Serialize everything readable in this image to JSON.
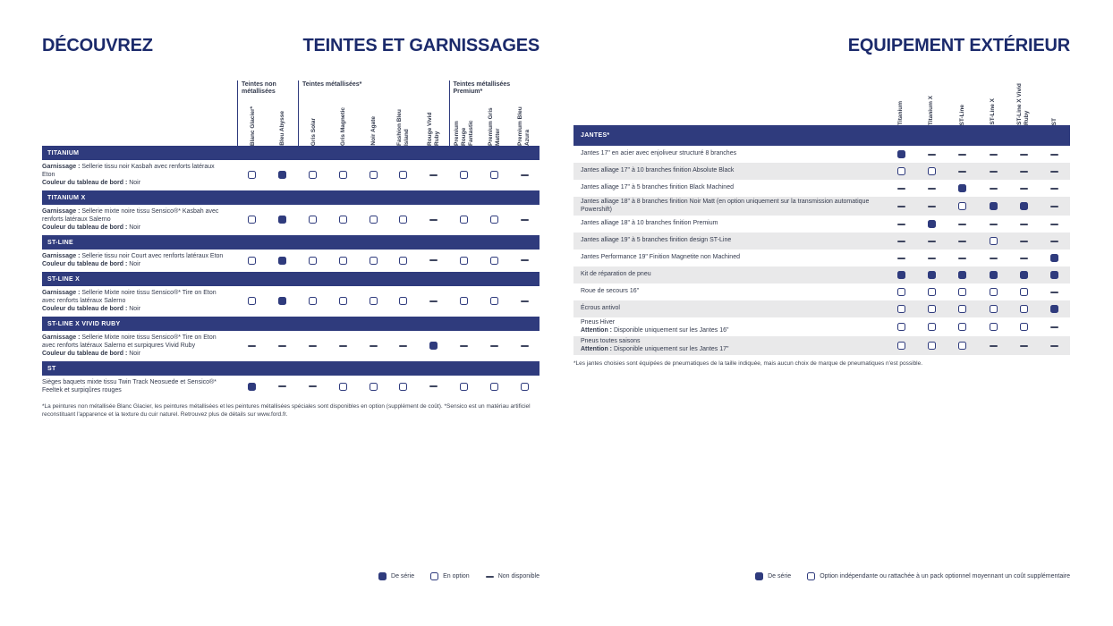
{
  "page": {
    "discover": "DÉCOUVREZ",
    "left_title": "TEINTES ET GARNISSAGES",
    "right_title": "EQUIPEMENT EXTÉRIEUR"
  },
  "colors": {
    "navy_bar": "#2f3b7d",
    "title_navy": "#1b2a6b",
    "row_stripe": "#e9e9ea",
    "dash": "#3f4660"
  },
  "left_table": {
    "groups": [
      {
        "label": "Teintes non métallisées",
        "span": 2
      },
      {
        "label": "Teintes métallisées*",
        "span": 5
      },
      {
        "label": "Teintes métallisées Premium*",
        "span": 3
      }
    ],
    "columns": [
      "Blanc Glacier*",
      "Bleu Abysse",
      "Gris Solar",
      "Gris Magnetic",
      "Noir Agate",
      "Fashion Bleu Island",
      "Rouge Vivid Ruby",
      "Premium Rouge Fantastic",
      "Premium Gris Matter",
      "Premium Bleu Azura"
    ],
    "sections": [
      {
        "header": "TITANIUM",
        "parts": [
          {
            "b": "Garnissage :",
            "t": " Sellerie tissu noir Kasbah avec renforts latéraux Eton"
          },
          {
            "b": "Couleur du tableau de bord :",
            "t": " Noir"
          }
        ],
        "values": [
          "o",
          "s",
          "o",
          "o",
          "o",
          "o",
          "n",
          "o",
          "o",
          "n"
        ]
      },
      {
        "header": "TITANIUM X",
        "parts": [
          {
            "b": "Garnissage :",
            "t": " Sellerie mixte noire tissu Sensico®* Kasbah avec renforts latéraux Salerno"
          },
          {
            "b": "Couleur du tableau de bord :",
            "t": " Noir"
          }
        ],
        "values": [
          "o",
          "s",
          "o",
          "o",
          "o",
          "o",
          "n",
          "o",
          "o",
          "n"
        ]
      },
      {
        "header": "ST-LINE",
        "parts": [
          {
            "b": "Garnissage :",
            "t": " Sellerie tissu noir Court avec renforts latéraux Eton"
          },
          {
            "b": "Couleur du tableau de bord :",
            "t": " Noir"
          }
        ],
        "values": [
          "o",
          "s",
          "o",
          "o",
          "o",
          "o",
          "n",
          "o",
          "o",
          "n"
        ]
      },
      {
        "header": "ST-LINE X",
        "parts": [
          {
            "b": "Garnissage :",
            "t": " Sellerie Mixte noire tissu Sensico®* Tire on Eton avec renforts latéraux Salerno"
          },
          {
            "b": "Couleur du tableau de bord :",
            "t": " Noir"
          }
        ],
        "values": [
          "o",
          "s",
          "o",
          "o",
          "o",
          "o",
          "n",
          "o",
          "o",
          "n"
        ]
      },
      {
        "header": "ST-LINE X VIVID RUBY",
        "parts": [
          {
            "b": "Garnissage :",
            "t": " Sellerie Mixte noire tissu Sensico®* Tire on Eton avec renforts latéraux Salerno et surpiqures Vivid Ruby"
          },
          {
            "b": "Couleur du tableau de bord :",
            "t": " Noir"
          }
        ],
        "values": [
          "n",
          "n",
          "n",
          "n",
          "n",
          "n",
          "s",
          "n",
          "n",
          "n"
        ]
      },
      {
        "header": "ST",
        "parts": [
          {
            "b": "",
            "t": "Sièges baquets mixte tissu Twin Track Neosuede et Sensico®* Feeltek et surpiqûres rouges"
          }
        ],
        "values": [
          "s",
          "n",
          "n",
          "o",
          "o",
          "o",
          "n",
          "o",
          "o",
          "o"
        ]
      }
    ],
    "footnote": "*La peintures non métallisée Blanc Glacier, les peintures métallisées et les peintures métallisées spéciales sont disponibles en option (supplément de coût). *Sensico est un matériau artificiel reconstituant l'apparence et la texture du cuir naturel. Retrouvez plus de détails sur www.ford.fr."
  },
  "right_table": {
    "columns": [
      "Titanium",
      "Titanium X",
      "ST-Line",
      "ST-Line X",
      "ST-Line X Vivid Ruby",
      "ST"
    ],
    "section": "JANTES*",
    "rows": [
      {
        "label": "Jantes 17\" en acier avec enjoliveur structuré 8 branches",
        "values": [
          "s",
          "n",
          "n",
          "n",
          "n",
          "n"
        ]
      },
      {
        "label": "Jantes alliage 17\" à 10 branches finition Absolute Black",
        "values": [
          "o",
          "o",
          "n",
          "n",
          "n",
          "n"
        ]
      },
      {
        "label": "Jantes alliage 17\" à 5 branches finition Black Machined",
        "values": [
          "n",
          "n",
          "s",
          "n",
          "n",
          "n"
        ]
      },
      {
        "label": "Jantes alliage 18\" à 8 branches finition Noir Matt (en option uniquement sur la transmission automatique Powershift)",
        "values": [
          "n",
          "n",
          "o",
          "s",
          "s",
          "n"
        ]
      },
      {
        "label": "Jantes alliage 18\" à 10 branches finition Premium",
        "values": [
          "n",
          "s",
          "n",
          "n",
          "n",
          "n"
        ]
      },
      {
        "label": "Jantes alliage 19\" à 5 branches finition design ST-Line",
        "values": [
          "n",
          "n",
          "n",
          "o",
          "n",
          "n"
        ]
      },
      {
        "label": "Jantes Performance 19\" Finition Magnetite non Machined",
        "values": [
          "n",
          "n",
          "n",
          "n",
          "n",
          "s"
        ]
      },
      {
        "label": "Kit de réparation de pneu",
        "values": [
          "s",
          "s",
          "s",
          "s",
          "s",
          "s"
        ]
      },
      {
        "label": "Roue de secours 16\"",
        "values": [
          "o",
          "o",
          "o",
          "o",
          "o",
          "n"
        ]
      },
      {
        "label": "Écrous antivol",
        "values": [
          "o",
          "o",
          "o",
          "o",
          "o",
          "s"
        ]
      },
      {
        "label": "Pneus Hiver",
        "note_bold": "Attention :",
        "note_text": " Disponible uniquement sur les Jantes 16\"",
        "values": [
          "o",
          "o",
          "o",
          "o",
          "o",
          "n"
        ]
      },
      {
        "label": "Pneus toutes saisons",
        "note_bold": "Attention :",
        "note_text": " Disponible uniquement sur les Jantes 17\"",
        "values": [
          "o",
          "o",
          "o",
          "n",
          "n",
          "n"
        ]
      }
    ],
    "footnote": "*Les jantes choisies sont équipées de pneumatiques de la taille indiquée, mais aucun choix de marque de pneumatiques n'est possible."
  },
  "legend_left": [
    {
      "type": "s",
      "label": "De série"
    },
    {
      "type": "o",
      "label": "En option"
    },
    {
      "type": "n",
      "label": "Non disponible"
    }
  ],
  "legend_right": [
    {
      "type": "s",
      "label": "De série"
    },
    {
      "type": "o",
      "label": "Option indépendante ou rattachée à un pack optionnel moyennant un coût supplémentaire"
    }
  ]
}
